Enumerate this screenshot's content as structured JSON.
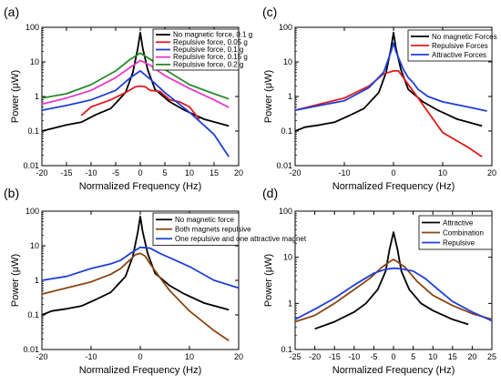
{
  "chart_data": [
    {
      "panel": "(a)",
      "type": "line",
      "xlabel": "Normalized Frequency (Hz)",
      "ylabel": "Power (μW)",
      "xlim": [
        -20,
        20
      ],
      "ylim": [
        0.01,
        100
      ],
      "yscale": "log",
      "xticks": [
        -20,
        -15,
        -10,
        -5,
        0,
        5,
        10,
        15,
        20
      ],
      "yticks": [
        0.01,
        0.1,
        1,
        10,
        100
      ],
      "ytick_labels": [
        "0.01",
        "0.1",
        "1",
        "10",
        "100"
      ],
      "legend_position": "top-right",
      "series": [
        {
          "name": "No magnetic force, 0.1 g",
          "color": "#000000",
          "x": [
            -20,
            -15,
            -12,
            -9,
            -6,
            -3,
            -1.5,
            -0.5,
            0,
            0.5,
            1.5,
            3,
            6,
            9,
            13,
            18
          ],
          "y": [
            0.1,
            0.15,
            0.18,
            0.3,
            0.45,
            1.3,
            5,
            25,
            70,
            25,
            6,
            1.6,
            0.7,
            0.4,
            0.22,
            0.14
          ]
        },
        {
          "name": "Repulsive force, 0.05 g",
          "color": "#e01b1b",
          "x": [
            -12,
            -10,
            -6,
            -3,
            -1,
            0,
            1,
            2,
            4,
            6,
            8,
            10,
            12
          ],
          "y": [
            0.28,
            0.5,
            0.8,
            1.3,
            1.9,
            2.0,
            1.9,
            1.5,
            1.4,
            0.8,
            0.7,
            0.5,
            0.22
          ]
        },
        {
          "name": "Repulsive force, 0.1 g",
          "color": "#1f3fd9",
          "x": [
            -20,
            -15,
            -10,
            -5,
            -2,
            0,
            2,
            5,
            10,
            15,
            18
          ],
          "y": [
            0.4,
            0.55,
            0.8,
            1.5,
            3.5,
            5.5,
            3.2,
            1.3,
            0.35,
            0.08,
            0.018
          ]
        },
        {
          "name": "Repulsive force, 0.15 g",
          "color": "#e838c8",
          "x": [
            -20,
            -15,
            -10,
            -5,
            -2,
            0,
            2,
            5,
            10,
            15,
            18
          ],
          "y": [
            0.6,
            0.9,
            1.5,
            3.5,
            7,
            11,
            8,
            4,
            1.7,
            0.8,
            0.48
          ]
        },
        {
          "name": "Repulsive force, 0.2 g",
          "color": "#2a8a2a",
          "x": [
            -20,
            -15,
            -10,
            -5,
            -2,
            0,
            2,
            5,
            10,
            15,
            18
          ],
          "y": [
            0.9,
            1.2,
            2.2,
            5.5,
            12,
            18,
            12,
            6,
            2.2,
            1.2,
            0.85
          ]
        }
      ]
    },
    {
      "panel": "(c)",
      "type": "line",
      "xlabel": "Normalized Frequency (Hz)",
      "ylabel": "Power (μW)",
      "xlim": [
        -20,
        20
      ],
      "ylim": [
        0.01,
        100
      ],
      "yscale": "log",
      "xticks": [
        -20,
        -10,
        0,
        10,
        20
      ],
      "yticks": [
        0.01,
        0.1,
        1,
        10,
        100
      ],
      "ytick_labels": [
        "0.01",
        "0.1",
        "1",
        "10",
        "100"
      ],
      "legend_position": "top-right",
      "series": [
        {
          "name": "No magnetic Forces",
          "color": "#000000",
          "x": [
            -20,
            -18,
            -15,
            -12,
            -9,
            -6,
            -3,
            -1.5,
            -0.5,
            0,
            0.5,
            1.5,
            3,
            6,
            9,
            13,
            18
          ],
          "y": [
            0.1,
            0.13,
            0.15,
            0.18,
            0.28,
            0.45,
            1.3,
            5,
            25,
            70,
            25,
            6,
            1.6,
            0.7,
            0.4,
            0.22,
            0.14
          ]
        },
        {
          "name": "Repulsive Forces",
          "color": "#e01b1b",
          "x": [
            -20,
            -15,
            -10,
            -5,
            -2,
            0,
            1,
            2,
            5,
            10,
            15,
            18
          ],
          "y": [
            0.4,
            0.6,
            0.9,
            2.0,
            4.5,
            5.5,
            5.5,
            3.5,
            0.9,
            0.09,
            0.035,
            0.018
          ]
        },
        {
          "name": "Attractive Forces",
          "color": "#1f3fd9",
          "x": [
            -20,
            -15,
            -10,
            -5,
            -2,
            -0.5,
            0,
            0.5,
            2,
            3,
            4,
            5,
            7,
            10,
            15,
            19
          ],
          "y": [
            0.4,
            0.55,
            0.75,
            1.8,
            5,
            20,
            35,
            20,
            6,
            3.5,
            2.5,
            1.6,
            1.0,
            0.7,
            0.5,
            0.38
          ]
        }
      ]
    },
    {
      "panel": "(b)",
      "type": "line",
      "xlabel": "Normalized Frequency (Hz)",
      "ylabel": "Power (μW)",
      "xlim": [
        -20,
        20
      ],
      "ylim": [
        0.01,
        100
      ],
      "yscale": "log",
      "xticks": [
        -20,
        -10,
        0,
        10,
        20
      ],
      "yticks": [
        0.01,
        0.1,
        1,
        10,
        100
      ],
      "ytick_labels": [
        "0.01",
        "0.1",
        "1",
        "10",
        "100"
      ],
      "legend_position": "top-right",
      "series": [
        {
          "name": "No magnetic force",
          "color": "#000000",
          "x": [
            -20,
            -18,
            -15,
            -12,
            -9,
            -6,
            -3,
            -1.5,
            -0.5,
            0,
            0.5,
            1.5,
            3,
            6,
            9,
            13,
            18
          ],
          "y": [
            0.1,
            0.13,
            0.15,
            0.18,
            0.28,
            0.45,
            1.3,
            5,
            25,
            70,
            25,
            6,
            1.6,
            0.7,
            0.4,
            0.22,
            0.14
          ]
        },
        {
          "name": "Both magnets repulsive",
          "color": "#8b4513",
          "x": [
            -20,
            -15,
            -10,
            -6,
            -4,
            -2,
            -1,
            0,
            1,
            2,
            4,
            6,
            10,
            15,
            18
          ],
          "y": [
            0.4,
            0.6,
            0.9,
            1.5,
            2.2,
            4,
            5.5,
            6,
            5,
            3,
            1.2,
            0.5,
            0.13,
            0.035,
            0.018
          ]
        },
        {
          "name": "One repulsive and one attractive magnet",
          "color": "#1f3fd9",
          "x": [
            -20,
            -15,
            -10,
            -6,
            -4,
            -2,
            0,
            2,
            4,
            6,
            10,
            15,
            20
          ],
          "y": [
            1.0,
            1.3,
            2.2,
            3.0,
            3.8,
            6,
            9,
            8.5,
            6,
            4.5,
            2.5,
            1.0,
            0.6
          ]
        }
      ]
    },
    {
      "panel": "(d)",
      "type": "line",
      "xlabel": "Normalized Frequency (Hz)",
      "ylabel": "Power (μW)",
      "xlim": [
        -25,
        25
      ],
      "ylim": [
        0.1,
        100
      ],
      "yscale": "log",
      "xticks": [
        -25,
        -20,
        -15,
        -10,
        -5,
        0,
        5,
        10,
        15,
        20,
        25
      ],
      "yticks": [
        0.1,
        1,
        10,
        100
      ],
      "ytick_labels": [
        "0.1",
        "1",
        "10",
        "100"
      ],
      "legend_position": "top-right",
      "series": [
        {
          "name": "Attractive",
          "color": "#000000",
          "x": [
            -20,
            -15,
            -10,
            -7,
            -4,
            -2,
            -1,
            0,
            1,
            2,
            4,
            7,
            10,
            15,
            19
          ],
          "y": [
            0.28,
            0.4,
            0.65,
            1.0,
            2.0,
            5,
            15,
            35,
            15,
            5,
            2.0,
            1.0,
            0.7,
            0.45,
            0.35
          ]
        },
        {
          "name": "Combination",
          "color": "#8b4513",
          "x": [
            -25,
            -20,
            -15,
            -10,
            -6,
            -3,
            -1,
            0,
            1,
            3,
            6,
            10,
            15,
            20,
            25
          ],
          "y": [
            0.4,
            0.55,
            1.0,
            2.0,
            3.5,
            6,
            8,
            9,
            8,
            6,
            3,
            1.5,
            0.9,
            0.6,
            0.45
          ]
        },
        {
          "name": "Repulsive",
          "color": "#1f3fd9",
          "x": [
            -25,
            -20,
            -15,
            -10,
            -5,
            -2,
            0,
            2,
            5,
            8,
            12,
            15,
            20,
            25
          ],
          "y": [
            0.45,
            0.75,
            1.3,
            2.5,
            4.5,
            5.5,
            5.8,
            5.6,
            5.0,
            3.5,
            1.8,
            1.1,
            0.65,
            0.42
          ]
        }
      ]
    }
  ]
}
